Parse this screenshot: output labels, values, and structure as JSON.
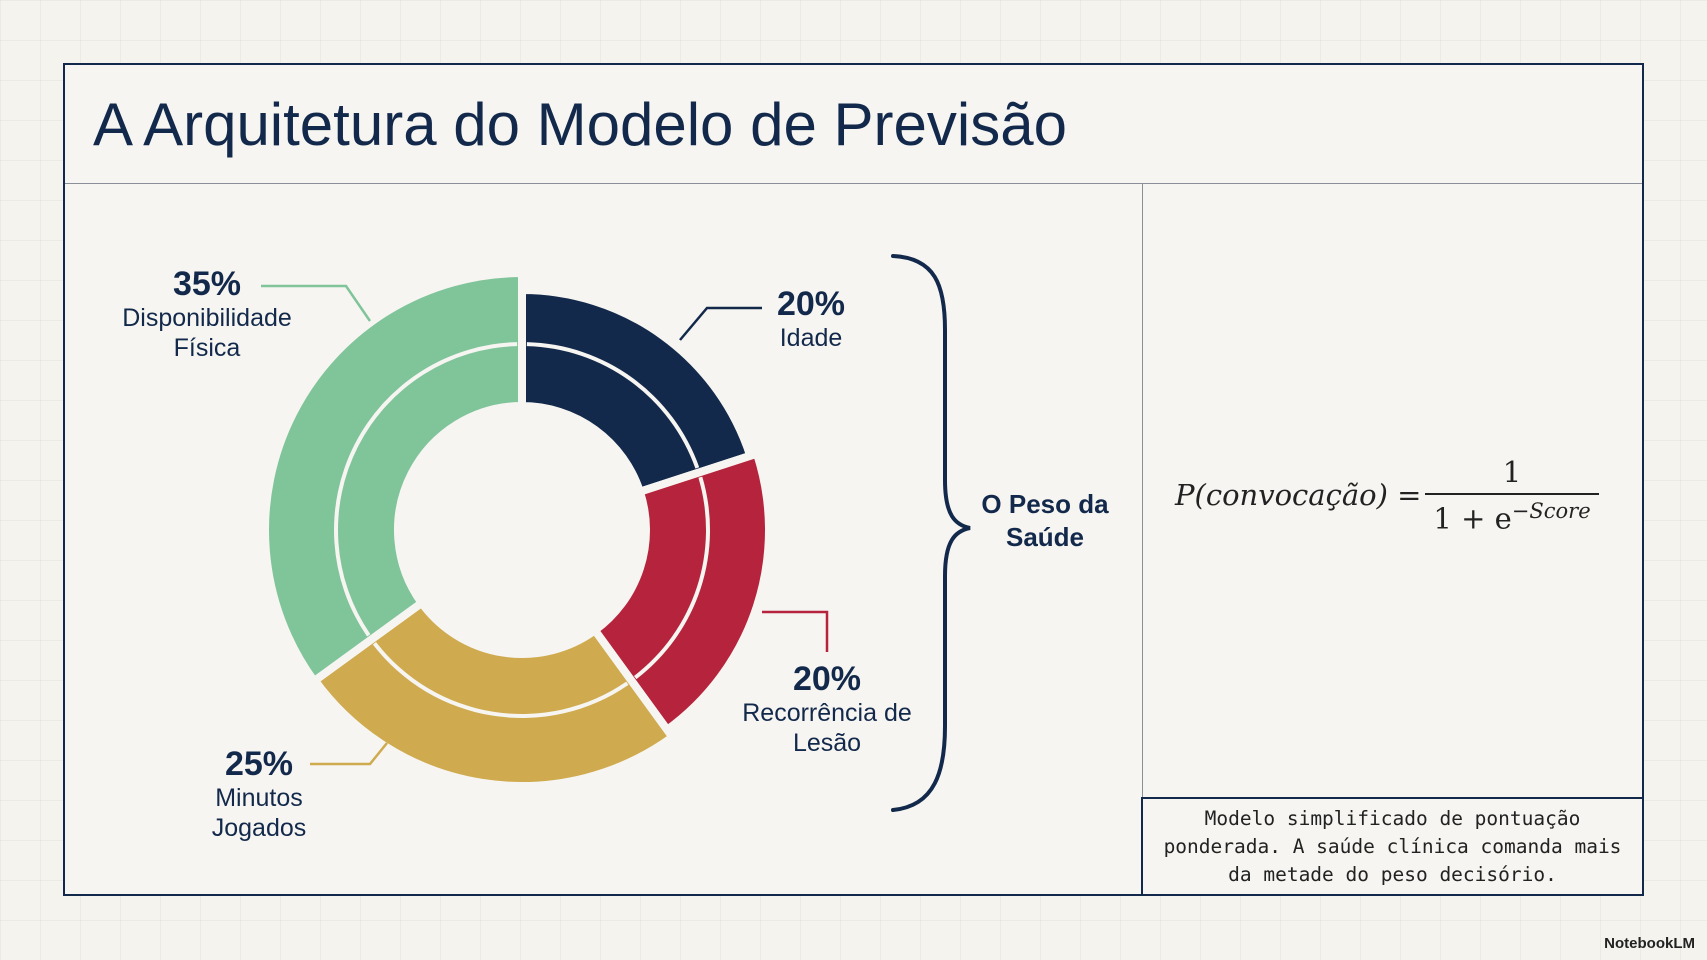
{
  "chart_data": {
    "type": "pie",
    "title": "A Arquitetura do Modelo de Previsão",
    "categories": [
      "Idade",
      "Recorrência de Lesão",
      "Minutos Jogados",
      "Disponibilidade Física"
    ],
    "values": [
      20,
      20,
      25,
      35
    ],
    "value_labels": [
      "20%",
      "20%",
      "25%",
      "35%"
    ],
    "colors": [
      "#13294b",
      "#b5243c",
      "#cfaa4e",
      "#80c49a"
    ],
    "group_label": "O Peso da Saúde",
    "formula": {
      "lhs": "P(convocação) =",
      "numerator": "1",
      "denominator": "1 + e",
      "exponent": "−Score"
    },
    "note": "Modelo simplificado de pontuação ponderada. A saúde clínica comanda mais da metade do peso decisório.",
    "brand": "NotebookLM"
  }
}
